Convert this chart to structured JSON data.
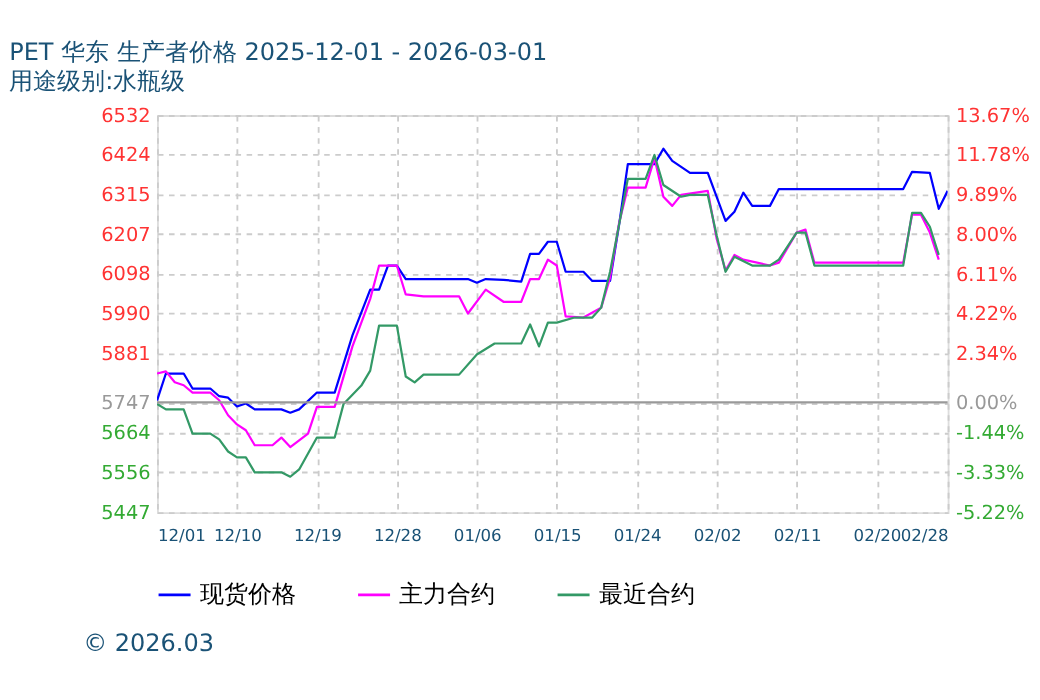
{
  "chart_data": {
    "type": "line",
    "title": "PET 华东 生产者价格 2025-12-01 - 2026-03-01",
    "subtitle": "用途级别:水瓶级",
    "xlim": [
      "2025-12-01",
      "2026-02-28"
    ],
    "xticks": [
      {
        "value": "2025-12-01",
        "label": "12/01"
      },
      {
        "value": "2025-12-10",
        "label": "12/10"
      },
      {
        "value": "2025-12-19",
        "label": "12/19"
      },
      {
        "value": "2025-12-28",
        "label": "12/28"
      },
      {
        "value": "2026-01-06",
        "label": "01/06"
      },
      {
        "value": "2026-01-15",
        "label": "01/15"
      },
      {
        "value": "2026-01-24",
        "label": "01/24"
      },
      {
        "value": "2026-02-02",
        "label": "02/02"
      },
      {
        "value": "2026-02-11",
        "label": "02/11"
      },
      {
        "value": "2026-02-20",
        "label": "02/20"
      },
      {
        "value": "2026-02-28",
        "label": "02/28"
      }
    ],
    "ylim": [
      5447,
      6532
    ],
    "yticks": [
      5447,
      5556,
      5664,
      5747,
      5881,
      5990,
      6098,
      6207,
      6315,
      6424,
      6532
    ],
    "y2lim": [
      -5.22,
      13.67
    ],
    "y2ticks": [
      {
        "value": -5.22,
        "label": "-5.22%"
      },
      {
        "value": -3.33,
        "label": "-3.33%"
      },
      {
        "value": -1.44,
        "label": "-1.44%"
      },
      {
        "value": 0,
        "label": "0.00%"
      },
      {
        "value": 2.34,
        "label": "2.34%"
      },
      {
        "value": 4.22,
        "label": "4.22%"
      },
      {
        "value": 6.11,
        "label": "6.11%"
      },
      {
        "value": 8.0,
        "label": "8.00%"
      },
      {
        "value": 9.89,
        "label": "9.89%"
      },
      {
        "value": 11.78,
        "label": "11.78%"
      },
      {
        "value": 13.67,
        "label": "13.67%"
      }
    ],
    "ref_lines": [
      {
        "axis": "y",
        "value": 5747,
        "color": "#999999"
      }
    ],
    "grid": true,
    "legend": "bottom",
    "line_style": "solid",
    "marker": "none",
    "annotations": [
      "© 2026.03"
    ],
    "series": [
      {
        "name": "现货价格",
        "color": "#0000ff",
        "x": [
          "2025-12-01",
          "2025-12-02",
          "2025-12-04",
          "2025-12-05",
          "2025-12-07",
          "2025-12-08",
          "2025-12-09",
          "2025-12-10",
          "2025-12-11",
          "2025-12-12",
          "2025-12-15",
          "2025-12-16",
          "2025-12-17",
          "2025-12-19",
          "2025-12-21",
          "2025-12-23",
          "2025-12-25",
          "2025-12-26",
          "2025-12-27",
          "2025-12-28",
          "2025-12-29",
          "2026-01-05",
          "2026-01-06",
          "2026-01-07",
          "2026-01-09",
          "2026-01-11",
          "2026-01-12",
          "2026-01-13",
          "2026-01-14",
          "2026-01-15",
          "2026-01-16",
          "2026-01-18",
          "2026-01-19",
          "2026-01-21",
          "2026-01-22",
          "2026-01-23",
          "2026-01-26",
          "2026-01-27",
          "2026-01-28",
          "2026-01-30",
          "2026-02-01",
          "2026-02-03",
          "2026-02-04",
          "2026-02-05",
          "2026-02-06",
          "2026-02-08",
          "2026-02-09",
          "2026-02-23",
          "2026-02-24",
          "2026-02-26",
          "2026-02-27",
          "2026-02-28"
        ],
        "values": [
          5752,
          5826,
          5826,
          5785,
          5785,
          5764,
          5760,
          5736,
          5744,
          5728,
          5728,
          5719,
          5728,
          5774,
          5774,
          5930,
          6055,
          6055,
          6121,
          6121,
          6084,
          6084,
          6074,
          6084,
          6082,
          6077,
          6153,
          6153,
          6186,
          6186,
          6104,
          6104,
          6079,
          6079,
          6230,
          6398,
          6398,
          6440,
          6407,
          6374,
          6374,
          6243,
          6268,
          6320,
          6284,
          6284,
          6330,
          6330,
          6377,
          6374,
          6276,
          6325
        ]
      },
      {
        "name": "主力合约",
        "color": "#ff00ff",
        "x": [
          "2025-12-01",
          "2025-12-02",
          "2025-12-03",
          "2025-12-04",
          "2025-12-05",
          "2025-12-07",
          "2025-12-08",
          "2025-12-09",
          "2025-12-10",
          "2025-12-11",
          "2025-12-12",
          "2025-12-14",
          "2025-12-15",
          "2025-12-16",
          "2025-12-18",
          "2025-12-19",
          "2025-12-21",
          "2025-12-23",
          "2025-12-25",
          "2025-12-26",
          "2025-12-28",
          "2025-12-29",
          "2025-12-31",
          "2026-01-04",
          "2026-01-05",
          "2026-01-07",
          "2026-01-09",
          "2026-01-11",
          "2026-01-12",
          "2026-01-13",
          "2026-01-14",
          "2026-01-15",
          "2026-01-16",
          "2026-01-18",
          "2026-01-20",
          "2026-01-21",
          "2026-01-22",
          "2026-01-23",
          "2026-01-25",
          "2026-01-26",
          "2026-01-27",
          "2026-01-28",
          "2026-01-29",
          "2026-02-01",
          "2026-02-02",
          "2026-02-03",
          "2026-02-04",
          "2026-02-05",
          "2026-02-08",
          "2026-02-09",
          "2026-02-11",
          "2026-02-12",
          "2026-02-13",
          "2026-02-23",
          "2026-02-24",
          "2026-02-25",
          "2026-02-26",
          "2026-02-27"
        ],
        "values": [
          5826,
          5832,
          5802,
          5794,
          5774,
          5774,
          5753,
          5712,
          5687,
          5671,
          5630,
          5630,
          5651,
          5625,
          5662,
          5735,
          5735,
          5900,
          6030,
          6121,
          6121,
          6042,
          6037,
          6037,
          5990,
          6055,
          6022,
          6022,
          6084,
          6084,
          6137,
          6121,
          5982,
          5979,
          6006,
          6088,
          6235,
          6334,
          6334,
          6415,
          6309,
          6284,
          6314,
          6325,
          6194,
          6107,
          6150,
          6137,
          6121,
          6129,
          6211,
          6219,
          6129,
          6129,
          6260,
          6260,
          6211,
          6137
        ]
      },
      {
        "name": "最近合约",
        "color": "#339966",
        "x": [
          "2025-12-01",
          "2025-12-02",
          "2025-12-04",
          "2025-12-05",
          "2025-12-07",
          "2025-12-08",
          "2025-12-09",
          "2025-12-10",
          "2025-12-11",
          "2025-12-12",
          "2025-12-15",
          "2025-12-16",
          "2025-12-17",
          "2025-12-19",
          "2025-12-21",
          "2025-12-22",
          "2025-12-24",
          "2025-12-25",
          "2025-12-26",
          "2025-12-28",
          "2025-12-29",
          "2025-12-30",
          "2025-12-31",
          "2026-01-04",
          "2026-01-06",
          "2026-01-08",
          "2026-01-11",
          "2026-01-12",
          "2026-01-13",
          "2026-01-14",
          "2026-01-15",
          "2026-01-17",
          "2026-01-19",
          "2026-01-20",
          "2026-01-21",
          "2026-01-23",
          "2026-01-25",
          "2026-01-26",
          "2026-01-27",
          "2026-01-29",
          "2026-01-30",
          "2026-02-01",
          "2026-02-02",
          "2026-02-03",
          "2026-02-04",
          "2026-02-06",
          "2026-02-08",
          "2026-02-09",
          "2026-02-11",
          "2026-02-12",
          "2026-02-13",
          "2026-02-23",
          "2026-02-24",
          "2026-02-25",
          "2026-02-26",
          "2026-02-27"
        ],
        "values": [
          5743,
          5728,
          5728,
          5662,
          5662,
          5646,
          5613,
          5597,
          5597,
          5556,
          5556,
          5544,
          5564,
          5651,
          5651,
          5743,
          5793,
          5834,
          5957,
          5957,
          5818,
          5802,
          5823,
          5823,
          5878,
          5908,
          5908,
          5960,
          5900,
          5965,
          5965,
          5979,
          5979,
          6006,
          6104,
          6358,
          6358,
          6423,
          6341,
          6309,
          6314,
          6314,
          6203,
          6104,
          6145,
          6121,
          6121,
          6137,
          6211,
          6211,
          6121,
          6121,
          6265,
          6265,
          6227,
          6150
        ]
      }
    ]
  }
}
